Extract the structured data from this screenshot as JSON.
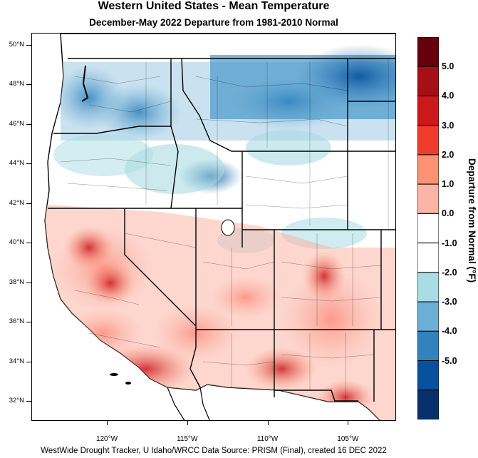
{
  "title": "Western United States - Mean Temperature",
  "subtitle": "December-May 2022  Departure from 1981-2010 Normal",
  "credit": "WestWide Drought Tracker, U Idaho/WRCC Data Source: PRISM (Final), created 16 DEC 2022",
  "map": {
    "latitude_labels": [
      "50°N",
      "48°N",
      "46°N",
      "44°N",
      "42°N",
      "40°N",
      "38°N",
      "36°N",
      "34°N",
      "32°N"
    ],
    "latitude_values": [
      50,
      48,
      46,
      44,
      42,
      40,
      38,
      36,
      34,
      32
    ],
    "longitude_labels": [
      "120°W",
      "115°W",
      "110°W",
      "105°W"
    ],
    "longitude_values": [
      -120,
      -115,
      -110,
      -105
    ],
    "extent": {
      "lon_min": -124.7,
      "lon_max": -102.0,
      "lat_min": 31.0,
      "lat_max": 50.6
    },
    "pattern": "Cold anomalies across the northern tier (WA, ID, MT, northern WY); warm anomalies across the southwest (CA, NV, AZ, NM, southern UT and CO)"
  },
  "colorbar": {
    "title": "Departure from Normal (°F)",
    "labels": [
      "5.0",
      "4.0",
      "3.0",
      "2.0",
      "1.0",
      "0.0",
      "-1.0",
      "-2.0",
      "-3.0",
      "-4.0",
      "-5.0"
    ],
    "colors": [
      "#67000d",
      "#a50f15",
      "#cb181d",
      "#ef3b2c",
      "#fc9272",
      "#fbb4a6",
      "#ffffff",
      "#ffffff",
      "#aadce3",
      "#6baed6",
      "#3182bd",
      "#08519c",
      "#08306b"
    ]
  }
}
